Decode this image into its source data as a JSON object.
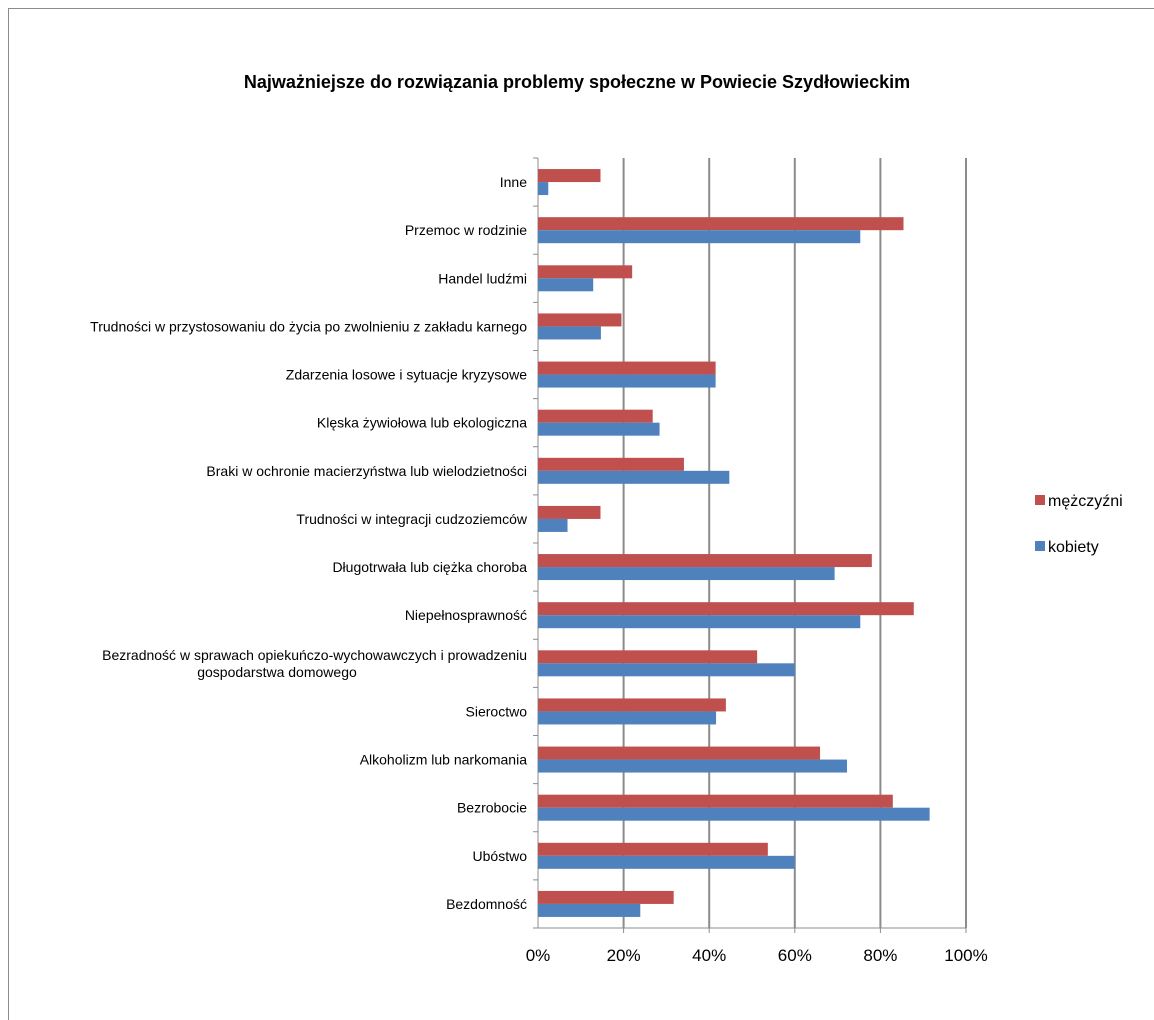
{
  "chart_data": {
    "type": "bar",
    "orientation": "horizontal",
    "title": "Najważniejsze do rozwiązania problemy społeczne w Powiecie Szydłowieckim",
    "categories": [
      "Inne",
      "Przemoc w rodzinie",
      "Handel ludźmi",
      "Trudności w przystosowaniu do życia po zwolnieniu z zakładu karnego",
      "Zdarzenia losowe i sytuacje kryzysowe",
      "Klęska żywiołowa lub ekologiczna",
      "Braki w ochronie macierzyństwa lub wielodzietności",
      "Trudności w integracji cudzoziemców",
      "Długotrwała lub ciężka choroba",
      "Niepełnosprawność",
      "Bezradność w sprawach opiekuńczo-wychowawczych i prowadzeniu gospodarstwa domowego",
      "Sieroctwo",
      "Alkoholizm lub narkomania",
      "Bezrobocie",
      "Ubóstwo",
      "Bezdomność"
    ],
    "category_lines": [
      [
        "Inne"
      ],
      [
        "Przemoc w rodzinie"
      ],
      [
        "Handel ludźmi"
      ],
      [
        "Trudności w przystosowaniu do życia po zwolnieniu z zakładu karnego"
      ],
      [
        "Zdarzenia losowe i sytuacje kryzysowe"
      ],
      [
        "Klęska żywiołowa lub ekologiczna"
      ],
      [
        "Braki w ochronie macierzyństwa lub wielodzietności"
      ],
      [
        "Trudności w integracji cudzoziemców"
      ],
      [
        "Długotrwała lub ciężka choroba"
      ],
      [
        "Niepełnosprawność"
      ],
      [
        "Bezradność w sprawach opiekuńczo-wychowawczych i prowadzeniu",
        "gospodarstwa domowego"
      ],
      [
        "Sieroctwo"
      ],
      [
        "Alkoholizm lub narkomania"
      ],
      [
        "Bezrobocie"
      ],
      [
        "Ubóstwo"
      ],
      [
        "Bezdomność"
      ]
    ],
    "series": [
      {
        "name": "mężczyźni",
        "color": "#c0504d",
        "values": [
          0.146,
          0.854,
          0.22,
          0.195,
          0.415,
          0.268,
          0.341,
          0.146,
          0.78,
          0.878,
          0.512,
          0.439,
          0.659,
          0.829,
          0.537,
          0.317
        ]
      },
      {
        "name": "kobiety",
        "color": "#4f81bd",
        "values": [
          0.024,
          0.753,
          0.129,
          0.147,
          0.415,
          0.284,
          0.447,
          0.069,
          0.693,
          0.753,
          0.6,
          0.416,
          0.722,
          0.915,
          0.6,
          0.239
        ]
      }
    ],
    "xlim": [
      0,
      1
    ],
    "xticks": [
      "0%",
      "20%",
      "40%",
      "60%",
      "80%",
      "100%"
    ],
    "grid": true,
    "legend_position": "right"
  }
}
